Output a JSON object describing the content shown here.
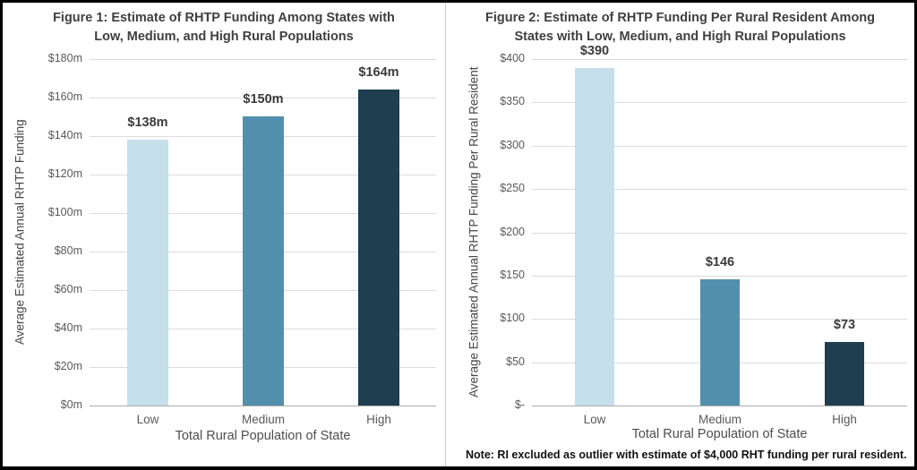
{
  "page": {
    "background_color": "#ffffff",
    "border_color": "#000000",
    "divider_color": "#c9c9c9",
    "gridline_color": "#dcdcdc",
    "baseline_color": "#adadad",
    "title_color": "#3f3f3f",
    "tick_color": "#595959"
  },
  "chart_data": [
    {
      "id": "figure1",
      "type": "bar",
      "title_lines": [
        "Figure 1: Estimate of RHTP Funding Among States with",
        "Low, Medium, and High Rural Populations"
      ],
      "categories": [
        "Low",
        "Medium",
        "High"
      ],
      "values": [
        138,
        150,
        164
      ],
      "value_labels": [
        "$138m",
        "$150m",
        "$164m"
      ],
      "bar_colors": [
        "#c5dfeb",
        "#518fad",
        "#1f3e4f"
      ],
      "xlabel": "Total Rural Population of State",
      "ylabel": "Average Estimated Annual RHTP Funding",
      "ylim": [
        0,
        180
      ],
      "ytick_step": 20,
      "ytick_labels": [
        "$0m",
        "$20m",
        "$40m",
        "$60m",
        "$80m",
        "$100m",
        "$120m",
        "$140m",
        "$160m",
        "$180m"
      ],
      "grid": true,
      "legend": "none"
    },
    {
      "id": "figure2",
      "type": "bar",
      "title_lines": [
        "Figure 2: Estimate of RHTP Funding Per Rural Resident Among",
        "States with Low, Medium, and High Rural Populations"
      ],
      "categories": [
        "Low",
        "Medium",
        "High"
      ],
      "values": [
        390,
        146,
        73
      ],
      "value_labels": [
        "$390",
        "$146",
        "$73"
      ],
      "bar_colors": [
        "#c5dfeb",
        "#518fad",
        "#1f3e4f"
      ],
      "xlabel": "Total Rural Population of State",
      "ylabel": "Average Estimated Annual RHTP Funding Per Rural Resident",
      "ylim": [
        0,
        400
      ],
      "ytick_step": 50,
      "ytick_labels": [
        "$-",
        "$50",
        "$100",
        "$150",
        "$200",
        "$250",
        "$300",
        "$350",
        "$400"
      ],
      "grid": true,
      "legend": "none",
      "note": "Note: RI excluded as outlier with estimate of $4,000 RHT funding per rural resident."
    }
  ]
}
